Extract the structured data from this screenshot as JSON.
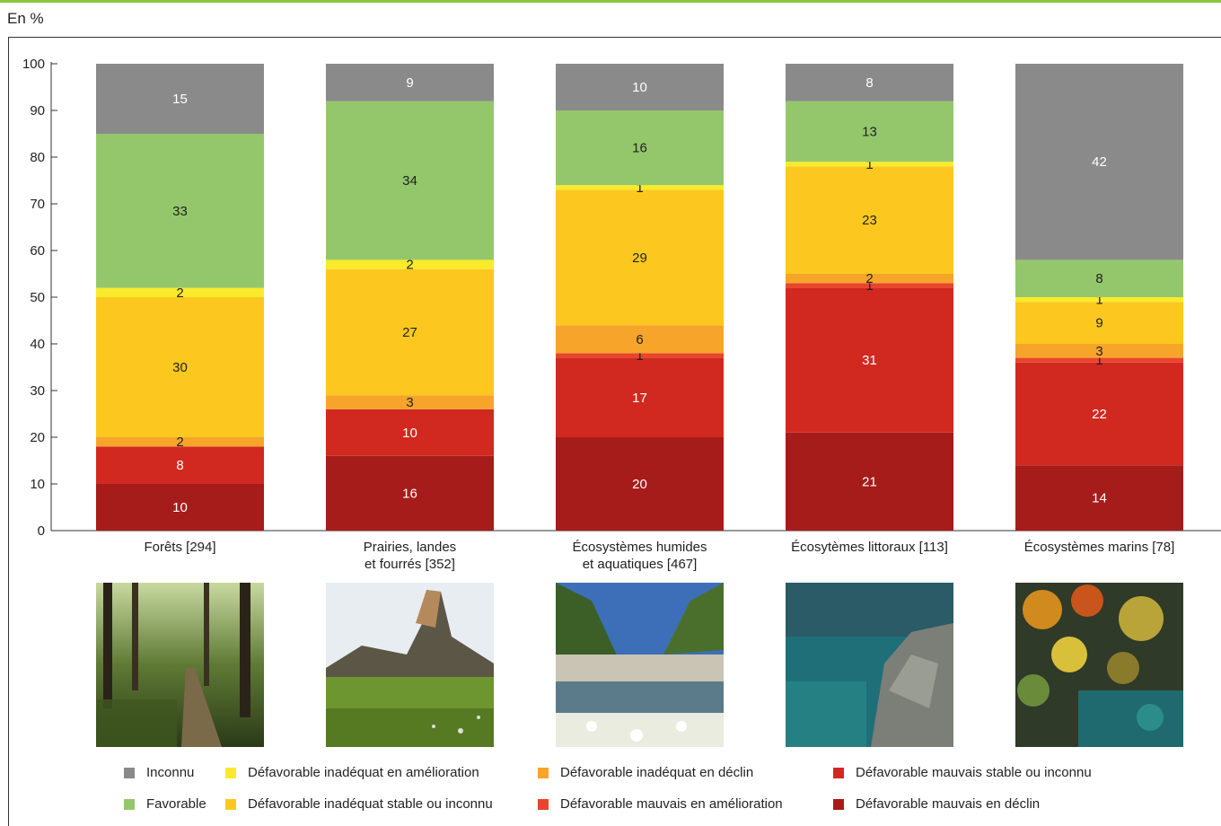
{
  "unit_label": "En %",
  "chart_data": {
    "type": "bar",
    "stacked": true,
    "ylim": [
      0,
      100
    ],
    "yticks": [
      0,
      10,
      20,
      30,
      40,
      50,
      60,
      70,
      80,
      90,
      100
    ],
    "grid": false,
    "legend_position": "bottom",
    "categories": [
      [
        "Forêts [294]"
      ],
      [
        "Prairies, landes",
        "et fourrés [352]"
      ],
      [
        "Écosystèmes humides",
        "et aquatiques [467]"
      ],
      [
        "Écosytèmes littoraux [113]"
      ],
      [
        "Écosystèmes marins [78]"
      ]
    ],
    "series": [
      {
        "name": "Défavorable mauvais en déclin",
        "color": "#a61c1a",
        "values": [
          10,
          16,
          20,
          21,
          14
        ]
      },
      {
        "name": "Défavorable mauvais stable ou inconnu",
        "color": "#d1291f",
        "values": [
          8,
          10,
          17,
          31,
          22
        ]
      },
      {
        "name": "Défavorable mauvais en amélioration",
        "color": "#e8452d",
        "values": [
          null,
          null,
          1,
          1,
          1
        ]
      },
      {
        "name": "Défavorable inadéquat en déclin",
        "color": "#f7a52a",
        "values": [
          2,
          3,
          6,
          2,
          3
        ]
      },
      {
        "name": "Défavorable inadéquat stable ou inconnu",
        "color": "#fcc81f",
        "values": [
          30,
          27,
          29,
          23,
          9
        ]
      },
      {
        "name": "Défavorable inadéquat en amélioration",
        "color": "#f9ea2c",
        "values": [
          2,
          2,
          1,
          1,
          1
        ]
      },
      {
        "name": "Favorable",
        "color": "#94c76b",
        "values": [
          33,
          34,
          16,
          13,
          8
        ]
      },
      {
        "name": "Inconnu",
        "color": "#8a8a8a",
        "values": [
          15,
          9,
          10,
          8,
          42
        ]
      }
    ]
  },
  "legend": [
    {
      "label": "Inconnu",
      "color": "#8a8a8a"
    },
    {
      "label": "Défavorable inadéquat en amélioration",
      "color": "#f9ea2c"
    },
    {
      "label": "Défavorable inadéquat en déclin",
      "color": "#f7a52a"
    },
    {
      "label": "Défavorable mauvais stable ou inconnu",
      "color": "#d1291f"
    },
    {
      "label": "Favorable",
      "color": "#94c76b"
    },
    {
      "label": "Défavorable inadéquat stable ou inconnu",
      "color": "#fcc81f"
    },
    {
      "label": "Défavorable mauvais en amélioration",
      "color": "#e8452d"
    },
    {
      "label": "Défavorable mauvais en déclin",
      "color": "#a61c1a"
    }
  ],
  "photos": [
    {
      "icon": "forest-photo"
    },
    {
      "icon": "meadow-photo"
    },
    {
      "icon": "river-photo"
    },
    {
      "icon": "coast-photo"
    },
    {
      "icon": "marine-photo"
    }
  ]
}
